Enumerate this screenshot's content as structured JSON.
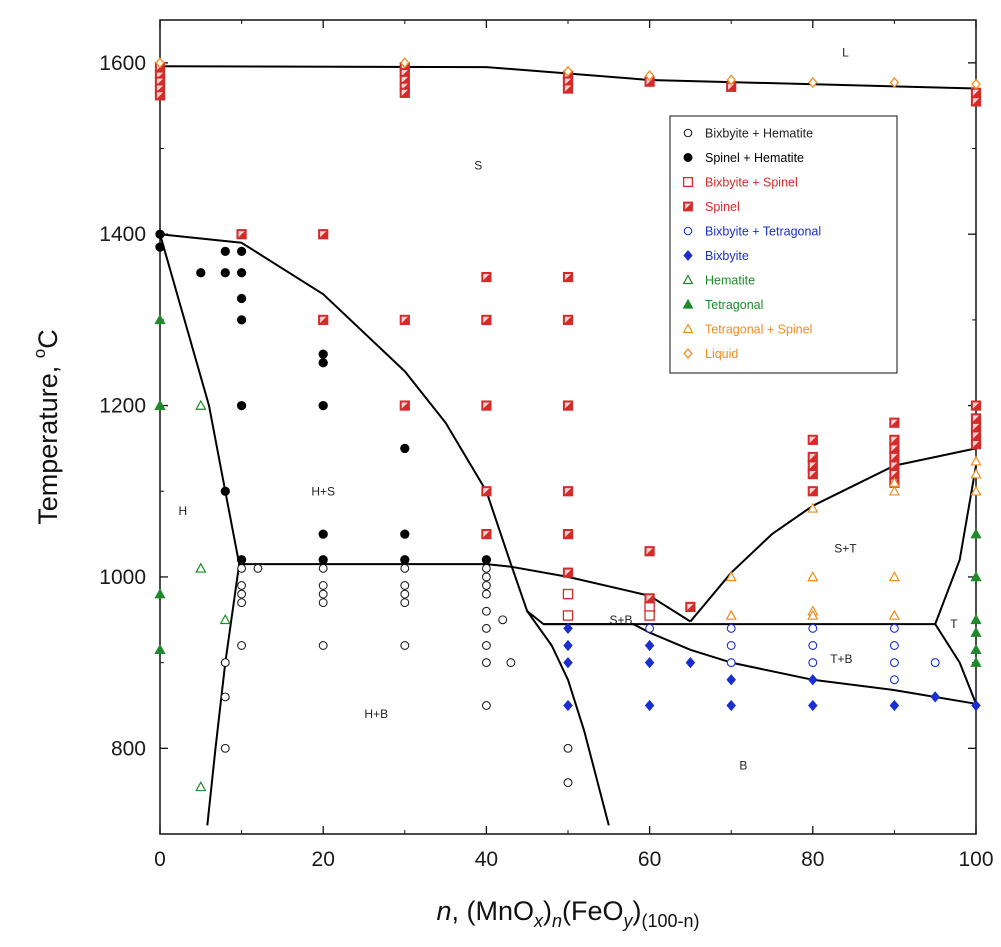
{
  "chart_data": {
    "type": "scatter",
    "title": "",
    "xlabel_parts": {
      "n": "n",
      "comma": ", (MnO",
      "x": "x",
      "close1": ")",
      "sub_n": "n",
      "fe": "(FeO",
      "y": "y",
      "close2": ")",
      "sub_rest": "(100-n)"
    },
    "ylabel_main": "Temperature, ",
    "ylabel_deg": "o",
    "ylabel_unit": "C",
    "xlim": [
      0,
      100
    ],
    "ylim": [
      700,
      1650
    ],
    "xticks": [
      0,
      20,
      40,
      60,
      80,
      100
    ],
    "yticks": [
      800,
      1000,
      1200,
      1400,
      1600
    ],
    "x_tick_labels": [
      "0",
      "20",
      "40",
      "60",
      "80",
      "100"
    ],
    "y_tick_labels": [
      "800",
      "1000",
      "1200",
      "1400",
      "1600"
    ],
    "legend_position": "top-right",
    "series": [
      {
        "name": "Bixbyite + Hematite",
        "color": "#222222",
        "marker": "circle-open",
        "points": [
          [
            8,
            900
          ],
          [
            8,
            860
          ],
          [
            8,
            800
          ],
          [
            10,
            1010
          ],
          [
            10,
            990
          ],
          [
            10,
            980
          ],
          [
            10,
            970
          ],
          [
            10,
            920
          ],
          [
            12,
            1010
          ],
          [
            20,
            1010
          ],
          [
            20,
            990
          ],
          [
            20,
            980
          ],
          [
            20,
            970
          ],
          [
            20,
            920
          ],
          [
            30,
            1010
          ],
          [
            30,
            990
          ],
          [
            30,
            980
          ],
          [
            30,
            970
          ],
          [
            30,
            920
          ],
          [
            40,
            1010
          ],
          [
            40,
            1000
          ],
          [
            40,
            990
          ],
          [
            40,
            980
          ],
          [
            40,
            960
          ],
          [
            40,
            940
          ],
          [
            40,
            920
          ],
          [
            40,
            900
          ],
          [
            40,
            850
          ],
          [
            42,
            950
          ],
          [
            43,
            900
          ],
          [
            50,
            800
          ],
          [
            50,
            760
          ]
        ]
      },
      {
        "name": "Spinel + Hematite",
        "color": "#000000",
        "marker": "circle-filled",
        "points": [
          [
            0,
            1400
          ],
          [
            0,
            1385
          ],
          [
            5,
            1355
          ],
          [
            8,
            1380
          ],
          [
            8,
            1355
          ],
          [
            8,
            1100
          ],
          [
            10,
            1380
          ],
          [
            10,
            1355
          ],
          [
            10,
            1325
          ],
          [
            10,
            1300
          ],
          [
            10,
            1200
          ],
          [
            10,
            1020
          ],
          [
            20,
            1260
          ],
          [
            20,
            1250
          ],
          [
            20,
            1200
          ],
          [
            20,
            1050
          ],
          [
            20,
            1020
          ],
          [
            30,
            1150
          ],
          [
            30,
            1050
          ],
          [
            30,
            1020
          ],
          [
            40,
            1050
          ],
          [
            40,
            1020
          ]
        ]
      },
      {
        "name": "Bixbyite + Spinel",
        "color": "#d42a2a",
        "marker": "square-open",
        "points": [
          [
            50,
            980
          ],
          [
            50,
            955
          ],
          [
            60,
            965
          ],
          [
            60,
            955
          ]
        ]
      },
      {
        "name": "Spinel",
        "color": "#d42a2a",
        "marker": "square-filled",
        "points": [
          [
            0,
            1595
          ],
          [
            0,
            1585
          ],
          [
            0,
            1578
          ],
          [
            0,
            1570
          ],
          [
            0,
            1562
          ],
          [
            10,
            1400
          ],
          [
            20,
            1400
          ],
          [
            20,
            1300
          ],
          [
            30,
            1595
          ],
          [
            30,
            1588
          ],
          [
            30,
            1580
          ],
          [
            30,
            1572
          ],
          [
            30,
            1565
          ],
          [
            30,
            1300
          ],
          [
            30,
            1200
          ],
          [
            40,
            1350
          ],
          [
            40,
            1300
          ],
          [
            40,
            1200
          ],
          [
            40,
            1100
          ],
          [
            40,
            1050
          ],
          [
            50,
            1585
          ],
          [
            50,
            1578
          ],
          [
            50,
            1570
          ],
          [
            50,
            1350
          ],
          [
            50,
            1300
          ],
          [
            50,
            1200
          ],
          [
            50,
            1100
          ],
          [
            50,
            1050
          ],
          [
            50,
            1005
          ],
          [
            60,
            1578
          ],
          [
            60,
            1030
          ],
          [
            60,
            975
          ],
          [
            65,
            965
          ],
          [
            70,
            1572
          ],
          [
            80,
            1160
          ],
          [
            80,
            1140
          ],
          [
            80,
            1130
          ],
          [
            80,
            1120
          ],
          [
            80,
            1100
          ],
          [
            90,
            1180
          ],
          [
            90,
            1160
          ],
          [
            90,
            1150
          ],
          [
            90,
            1140
          ],
          [
            90,
            1130
          ],
          [
            90,
            1120
          ],
          [
            90,
            1110
          ],
          [
            100,
            1565
          ],
          [
            100,
            1555
          ],
          [
            100,
            1200
          ],
          [
            100,
            1185
          ],
          [
            100,
            1175
          ],
          [
            100,
            1165
          ],
          [
            100,
            1155
          ]
        ]
      },
      {
        "name": "Bixbyite + Tetragonal",
        "color": "#1a2fd0",
        "marker": "circle-open",
        "points": [
          [
            60,
            940
          ],
          [
            70,
            940
          ],
          [
            70,
            920
          ],
          [
            70,
            900
          ],
          [
            80,
            940
          ],
          [
            80,
            920
          ],
          [
            80,
            900
          ],
          [
            90,
            940
          ],
          [
            90,
            920
          ],
          [
            90,
            900
          ],
          [
            90,
            880
          ],
          [
            95,
            900
          ]
        ]
      },
      {
        "name": "Bixbyite",
        "color": "#1a2fd0",
        "marker": "diamond-filled",
        "points": [
          [
            50,
            940
          ],
          [
            50,
            920
          ],
          [
            50,
            900
          ],
          [
            50,
            850
          ],
          [
            60,
            920
          ],
          [
            60,
            900
          ],
          [
            60,
            850
          ],
          [
            65,
            900
          ],
          [
            70,
            880
          ],
          [
            70,
            850
          ],
          [
            80,
            880
          ],
          [
            80,
            850
          ],
          [
            90,
            850
          ],
          [
            95,
            860
          ],
          [
            100,
            850
          ]
        ]
      },
      {
        "name": "Hematite",
        "color": "#1f8a2a",
        "marker": "triangle-open",
        "points": [
          [
            0,
            1200
          ],
          [
            5,
            1200
          ],
          [
            5,
            1010
          ],
          [
            8,
            950
          ],
          [
            5,
            755
          ]
        ]
      },
      {
        "name": "Tetragonal",
        "color": "#1f8a2a",
        "marker": "triangle-filled",
        "points": [
          [
            0,
            1300
          ],
          [
            0,
            1200
          ],
          [
            0,
            980
          ],
          [
            0,
            915
          ],
          [
            100,
            1050
          ],
          [
            100,
            1000
          ],
          [
            100,
            950
          ],
          [
            100,
            935
          ],
          [
            100,
            915
          ],
          [
            100,
            900
          ]
        ]
      },
      {
        "name": "Tetragonal + Spinel",
        "color": "#f08c1e",
        "marker": "triangle-open",
        "points": [
          [
            70,
            1000
          ],
          [
            70,
            955
          ],
          [
            80,
            1080
          ],
          [
            80,
            1000
          ],
          [
            80,
            960
          ],
          [
            80,
            955
          ],
          [
            90,
            1110
          ],
          [
            90,
            1100
          ],
          [
            90,
            1000
          ],
          [
            90,
            955
          ],
          [
            100,
            1135
          ],
          [
            100,
            1120
          ],
          [
            100,
            1100
          ]
        ]
      },
      {
        "name": "Liquid",
        "color": "#f08c1e",
        "marker": "diamond-open",
        "points": [
          [
            0,
            1600
          ],
          [
            30,
            1600
          ],
          [
            50,
            1590
          ],
          [
            60,
            1585
          ],
          [
            70,
            1580
          ],
          [
            80,
            1577
          ],
          [
            90,
            1577
          ],
          [
            100,
            1575
          ]
        ]
      }
    ],
    "phase_boundaries": [
      {
        "points": [
          [
            0,
            1596
          ],
          [
            40,
            1595
          ],
          [
            60,
            1580
          ],
          [
            100,
            1570
          ]
        ]
      },
      {
        "points": [
          [
            0,
            1400
          ],
          [
            10,
            1390
          ],
          [
            20,
            1330
          ],
          [
            30,
            1240
          ],
          [
            35,
            1180
          ],
          [
            40,
            1100
          ],
          [
            43,
            1015
          ],
          [
            45,
            960
          ],
          [
            47,
            945
          ],
          [
            58,
            945
          ],
          [
            60,
            935
          ],
          [
            65,
            915
          ],
          [
            70,
            900
          ],
          [
            80,
            880
          ],
          [
            90,
            868
          ],
          [
            100,
            852
          ]
        ]
      },
      {
        "points": [
          [
            0,
            1400
          ],
          [
            3,
            1300
          ],
          [
            6,
            1200
          ],
          [
            8,
            1100
          ],
          [
            9.7,
            1015
          ]
        ]
      },
      {
        "points": [
          [
            9.7,
            1015
          ],
          [
            8,
            900
          ],
          [
            6.8,
            800
          ],
          [
            5.8,
            710
          ]
        ]
      },
      {
        "points": [
          [
            9.7,
            1015
          ],
          [
            40,
            1015
          ],
          [
            43,
            1012
          ],
          [
            50,
            1000
          ],
          [
            60,
            978
          ],
          [
            65,
            948
          ]
        ]
      },
      {
        "points": [
          [
            45,
            960
          ],
          [
            48,
            920
          ],
          [
            50,
            880
          ],
          [
            52,
            820
          ],
          [
            55,
            710
          ]
        ]
      },
      {
        "points": [
          [
            47,
            945
          ],
          [
            95,
            945
          ]
        ]
      },
      {
        "points": [
          [
            65,
            948
          ],
          [
            70,
            1005
          ],
          [
            75,
            1050
          ],
          [
            80,
            1083
          ],
          [
            90,
            1130
          ],
          [
            100,
            1150
          ]
        ]
      },
      {
        "points": [
          [
            95,
            945
          ],
          [
            98,
            1020
          ],
          [
            100,
            1130
          ]
        ]
      },
      {
        "points": [
          [
            95,
            945
          ],
          [
            98,
            900
          ],
          [
            100,
            852
          ]
        ]
      }
    ],
    "annotations": [
      {
        "text": "L",
        "x": 84,
        "y": 1612
      },
      {
        "text": "S",
        "x": 39,
        "y": 1480
      },
      {
        "text": "H+S",
        "x": 20,
        "y": 1100
      },
      {
        "text": "H",
        "x": 2.8,
        "y": 1077
      },
      {
        "text": "S+T",
        "x": 84,
        "y": 1033
      },
      {
        "text": "S+B",
        "x": 56.5,
        "y": 950
      },
      {
        "text": "T",
        "x": 97.3,
        "y": 945
      },
      {
        "text": "T+B",
        "x": 83.5,
        "y": 904
      },
      {
        "text": "H+B",
        "x": 26.5,
        "y": 840
      },
      {
        "text": "B",
        "x": 71.5,
        "y": 780
      }
    ]
  }
}
